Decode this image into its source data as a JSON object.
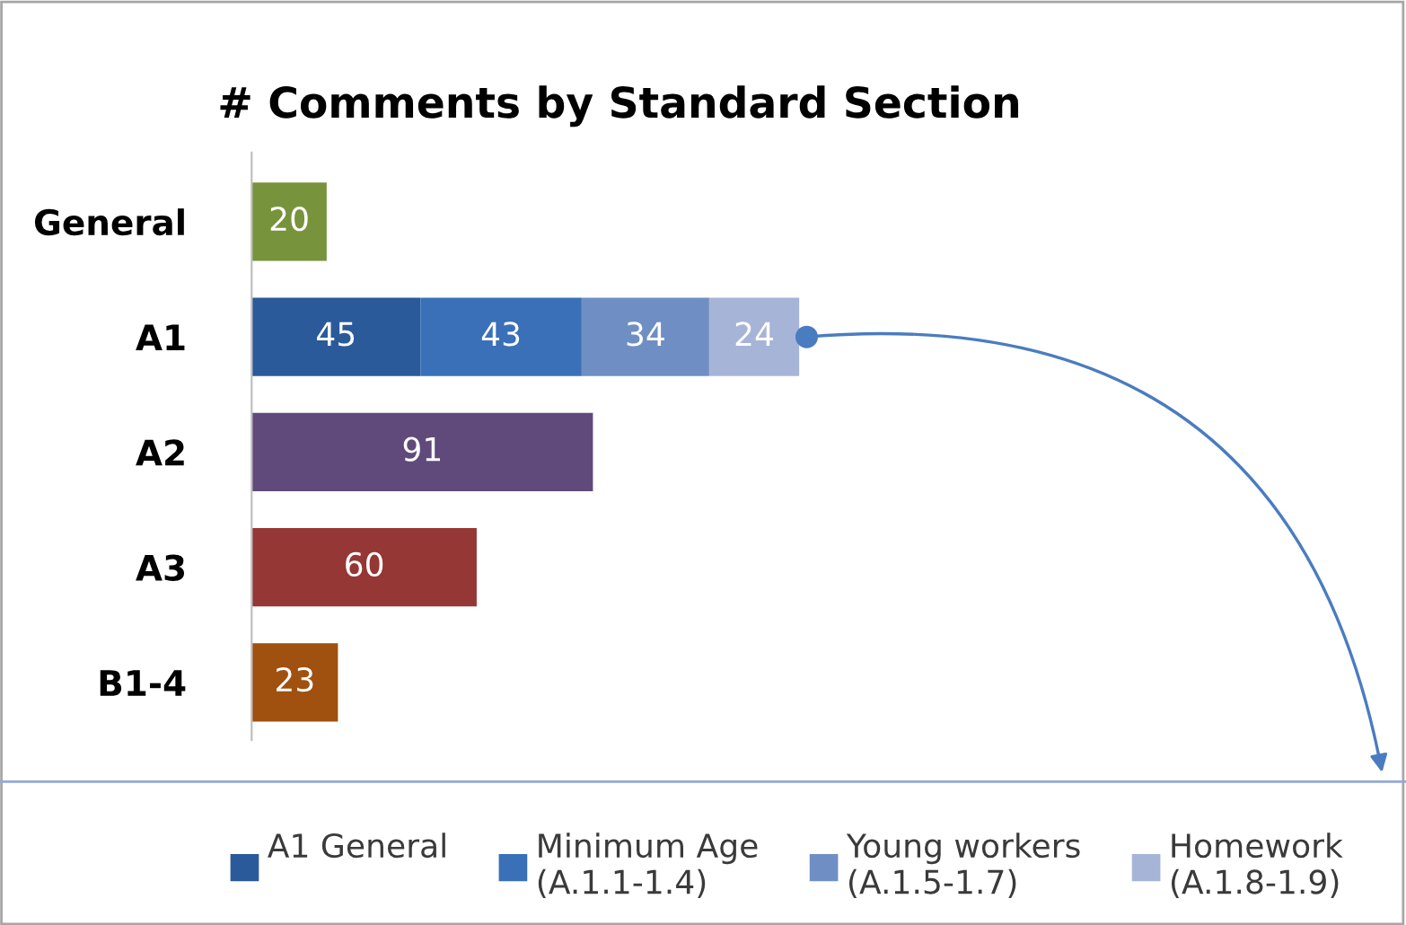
{
  "chart_data": {
    "type": "bar",
    "orientation": "horizontal",
    "stacked": true,
    "title": "# Comments by Standard Section",
    "categories": [
      "General",
      "A1",
      "A2",
      "A3",
      "B1-4"
    ],
    "series": [
      {
        "values": [
          20,
          null,
          91,
          60,
          23
        ],
        "colors": [
          "#77933c",
          "#2a5a9a",
          "#604a7b",
          "#953735",
          "#a0500f"
        ]
      },
      {
        "name": "A1 General\n",
        "color": "#2a5a9a",
        "values": [
          null,
          45,
          null,
          null,
          null
        ]
      },
      {
        "name": "Minimum Age\n(A.1.1-1.4)",
        "color": "#3a70b8",
        "values": [
          null,
          43,
          null,
          null,
          null
        ]
      },
      {
        "name": "Young workers\n(A.1.5-1.7)",
        "color": "#6f8fc4",
        "values": [
          null,
          34,
          null,
          null,
          null
        ]
      },
      {
        "name": "Homework\n(A.1.8-1.9)",
        "color": "#a6b4d8",
        "values": [
          null,
          24,
          null,
          null,
          null
        ]
      }
    ],
    "data_labels": true,
    "legend": "bottom",
    "tick_labels": "y",
    "grid": false
  }
}
